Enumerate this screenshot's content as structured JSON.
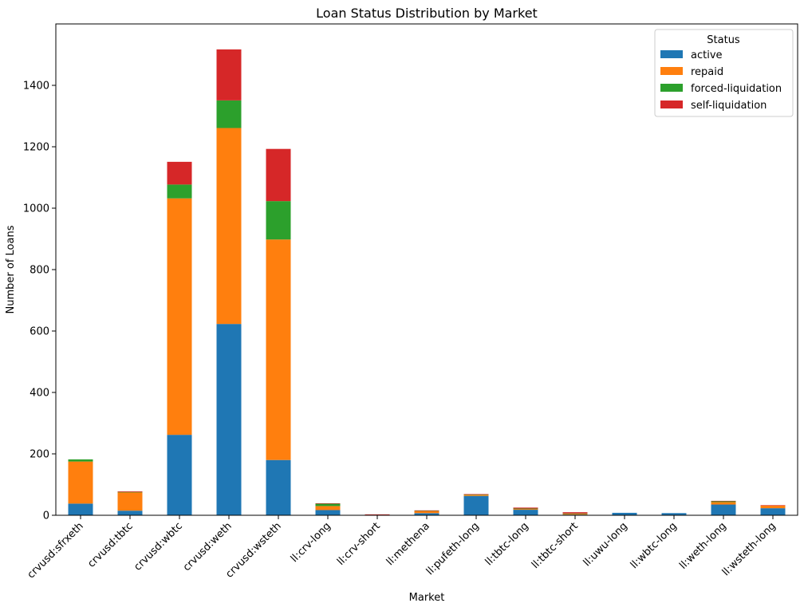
{
  "chart_data": {
    "type": "bar",
    "stacked": true,
    "title": "Loan Status Distribution by Market",
    "xlabel": "Market",
    "ylabel": "Number of Loans",
    "ylim": [
      0,
      1600
    ],
    "yticks": [
      0,
      200,
      400,
      600,
      800,
      1000,
      1200,
      1400
    ],
    "legend": {
      "title": "Status",
      "placement": "top-right"
    },
    "categories": [
      "crvusd:sfrxeth",
      "crvusd:tbtc",
      "crvusd:wbtc",
      "crvusd:weth",
      "crvusd:wsteth",
      "ll:crv-long",
      "ll:crv-short",
      "ll:methena",
      "ll:pufeth-long",
      "ll:tbtc-long",
      "ll:tbtc-short",
      "ll:uwu-long",
      "ll:wbtc-long",
      "ll:weth-long",
      "ll:wsteth-long"
    ],
    "series": [
      {
        "name": "active",
        "color": "#1f77b4",
        "values": [
          38,
          15,
          262,
          623,
          180,
          17,
          0,
          7,
          63,
          18,
          2,
          8,
          7,
          35,
          23
        ]
      },
      {
        "name": "repaid",
        "color": "#ff7f0e",
        "values": [
          137,
          60,
          770,
          638,
          718,
          13,
          2,
          7,
          4,
          3,
          3,
          0,
          0,
          8,
          9
        ]
      },
      {
        "name": "forced-liquidation",
        "color": "#2ca02c",
        "values": [
          7,
          1,
          45,
          90,
          125,
          8,
          0,
          1,
          1,
          1,
          1,
          0,
          0,
          3,
          0
        ]
      },
      {
        "name": "self-liquidation",
        "color": "#d62728",
        "values": [
          0,
          2,
          74,
          166,
          170,
          1,
          1,
          1,
          1,
          3,
          4,
          0,
          0,
          1,
          1
        ]
      }
    ]
  }
}
